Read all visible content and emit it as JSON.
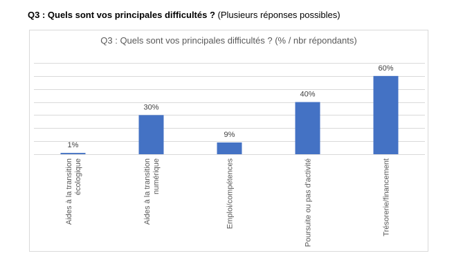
{
  "page": {
    "heading_bold": "Q3 : Quels sont vos principales difficultés ?",
    "heading_rest": "(Plusieurs réponses possibles)"
  },
  "colors": {
    "bar": "#4472c4",
    "grid": "#d9d9d9",
    "frame": "#d9d9d9"
  },
  "chart_data": {
    "type": "bar",
    "title": "Q3 : Quels sont vos principales difficultés ? (% / nbr répondants)",
    "categories": [
      [
        "Aides à la transition",
        "écologique"
      ],
      [
        "Aides à la transition",
        "numérique"
      ],
      [
        "Emploi/compétences"
      ],
      [
        "Poursuite ou pas d'activité"
      ],
      [
        "Trésorerie/financement"
      ]
    ],
    "values": [
      1,
      30,
      9,
      40,
      60
    ],
    "value_labels": [
      "1%",
      "30%",
      "9%",
      "40%",
      "60%"
    ],
    "ylim": [
      0,
      70
    ],
    "grid": true,
    "legend": "none"
  }
}
